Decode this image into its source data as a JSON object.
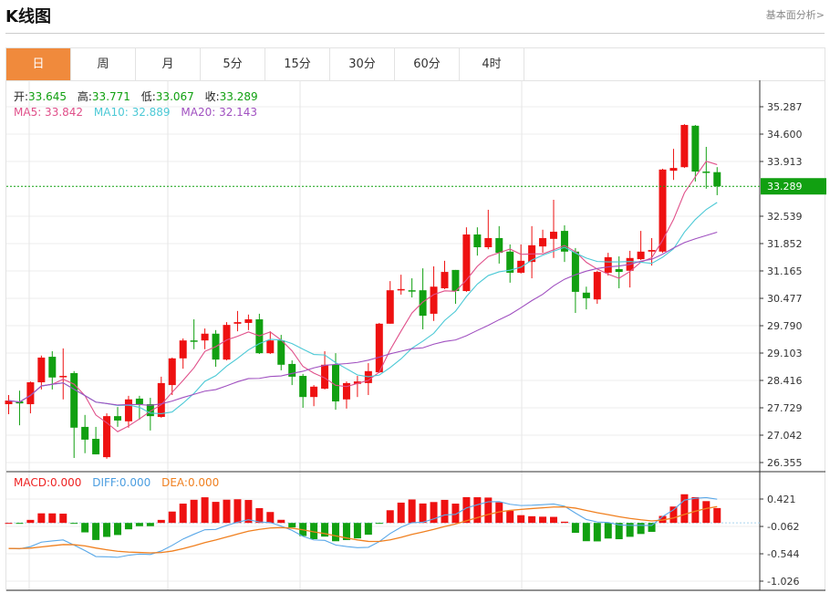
{
  "header": {
    "title": "K线图",
    "link": "基本面分析>"
  },
  "tabs": [
    {
      "label": "日",
      "active": true
    },
    {
      "label": "周"
    },
    {
      "label": "月"
    },
    {
      "label": "5分"
    },
    {
      "label": "15分"
    },
    {
      "label": "30分"
    },
    {
      "label": "60分"
    },
    {
      "label": "4时"
    }
  ],
  "ohlc_info": {
    "open_label": "开:",
    "open": "33.645",
    "high_label": "高:",
    "high": "33.771",
    "low_label": "低:",
    "low": "33.067",
    "close_label": "收:",
    "close": "33.289"
  },
  "ma_info": {
    "ma5": "MA5: 33.842",
    "ma10": "MA10: 32.889",
    "ma20": "MA20: 32.143"
  },
  "macd_info": {
    "macd": "MACD:0.000",
    "diff": "DIFF:0.000",
    "dea": "DEA:0.000"
  },
  "colors": {
    "up": "#ee1111",
    "down": "#11a011",
    "ma5": "#e0508a",
    "ma10": "#4cc9d6",
    "ma20": "#a050c0",
    "diff": "#5aa8e8",
    "dea": "#f08020",
    "accent": "#f08a3c"
  },
  "chart_data": {
    "type": "candlestick",
    "price_axis_ticks": [
      "35.287",
      "34.600",
      "33.913",
      "32.539",
      "31.852",
      "31.165",
      "30.477",
      "29.790",
      "29.103",
      "28.416",
      "27.729",
      "27.042",
      "26.355"
    ],
    "price_range": [
      26.355,
      35.287
    ],
    "last_price": "33.289",
    "macd_axis_ticks": [
      "0.421",
      "-0.062",
      "-0.544",
      "-1.026"
    ],
    "macd_range": [
      -1.026,
      0.421
    ],
    "candles": [
      [
        27.82,
        28.05,
        27.57,
        27.91
      ],
      [
        27.89,
        28.16,
        27.29,
        27.84
      ],
      [
        27.82,
        28.39,
        27.59,
        28.37
      ],
      [
        28.37,
        29.04,
        28.19,
        28.99
      ],
      [
        29.01,
        29.15,
        28.19,
        28.49
      ],
      [
        28.51,
        29.22,
        27.94,
        28.53
      ],
      [
        28.6,
        28.65,
        26.47,
        27.23
      ],
      [
        27.25,
        27.55,
        26.59,
        26.93
      ],
      [
        26.95,
        27.25,
        26.56,
        26.56
      ],
      [
        26.49,
        27.59,
        26.45,
        27.52
      ],
      [
        27.52,
        27.75,
        27.25,
        27.41
      ],
      [
        27.39,
        28.03,
        27.23,
        27.94
      ],
      [
        27.96,
        28.03,
        27.43,
        27.82
      ],
      [
        27.82,
        27.98,
        27.16,
        27.52
      ],
      [
        27.5,
        28.51,
        27.48,
        28.35
      ],
      [
        28.3,
        28.99,
        28.05,
        28.97
      ],
      [
        28.97,
        29.47,
        28.71,
        29.42
      ],
      [
        29.42,
        29.95,
        29.2,
        29.4
      ],
      [
        29.42,
        29.72,
        29.2,
        29.59
      ],
      [
        29.59,
        29.68,
        28.76,
        28.94
      ],
      [
        28.94,
        29.88,
        28.92,
        29.81
      ],
      [
        29.84,
        30.16,
        29.65,
        29.88
      ],
      [
        29.86,
        30.07,
        29.68,
        29.95
      ],
      [
        29.95,
        30.09,
        29.08,
        29.1
      ],
      [
        29.1,
        29.65,
        29.08,
        29.42
      ],
      [
        29.42,
        29.56,
        28.67,
        28.81
      ],
      [
        28.83,
        28.92,
        28.3,
        28.51
      ],
      [
        28.53,
        28.58,
        27.73,
        28.0
      ],
      [
        28.0,
        28.3,
        27.77,
        28.26
      ],
      [
        28.21,
        29.15,
        28.19,
        28.81
      ],
      [
        28.81,
        29.1,
        27.68,
        27.89
      ],
      [
        27.94,
        28.39,
        27.71,
        28.35
      ],
      [
        28.33,
        28.53,
        28.0,
        28.39
      ],
      [
        28.35,
        28.85,
        28.05,
        28.65
      ],
      [
        28.62,
        29.86,
        28.6,
        29.84
      ],
      [
        29.84,
        30.91,
        29.84,
        30.68
      ],
      [
        30.68,
        31.07,
        30.57,
        30.71
      ],
      [
        30.68,
        30.98,
        30.5,
        30.66
      ],
      [
        30.68,
        31.23,
        29.7,
        30.04
      ],
      [
        30.09,
        31.28,
        29.91,
        30.77
      ],
      [
        30.73,
        31.42,
        30.71,
        31.14
      ],
      [
        31.19,
        31.19,
        30.34,
        30.66
      ],
      [
        30.66,
        32.26,
        30.64,
        32.08
      ],
      [
        32.08,
        32.26,
        31.55,
        31.76
      ],
      [
        31.76,
        32.7,
        31.71,
        31.99
      ],
      [
        31.99,
        32.29,
        31.35,
        31.62
      ],
      [
        31.65,
        31.83,
        30.87,
        31.12
      ],
      [
        31.12,
        31.83,
        31.1,
        31.42
      ],
      [
        31.39,
        32.29,
        30.98,
        31.81
      ],
      [
        31.78,
        32.2,
        31.62,
        31.99
      ],
      [
        31.97,
        32.95,
        31.49,
        32.15
      ],
      [
        32.17,
        32.31,
        31.39,
        31.65
      ],
      [
        31.65,
        31.74,
        30.11,
        30.64
      ],
      [
        30.62,
        30.77,
        30.2,
        30.48
      ],
      [
        30.45,
        31.17,
        30.34,
        31.14
      ],
      [
        31.12,
        31.62,
        31.05,
        31.51
      ],
      [
        31.21,
        31.53,
        30.73,
        31.14
      ],
      [
        31.17,
        31.67,
        30.75,
        31.49
      ],
      [
        31.46,
        32.17,
        31.44,
        31.65
      ],
      [
        31.65,
        31.99,
        31.3,
        31.69
      ],
      [
        31.65,
        33.73,
        31.62,
        33.71
      ],
      [
        33.68,
        34.23,
        33.45,
        33.75
      ],
      [
        33.77,
        34.85,
        33.75,
        34.83
      ],
      [
        34.81,
        34.83,
        33.41,
        33.66
      ],
      [
        33.66,
        34.28,
        33.23,
        33.64
      ],
      [
        33.645,
        33.771,
        33.067,
        33.289
      ]
    ]
  }
}
